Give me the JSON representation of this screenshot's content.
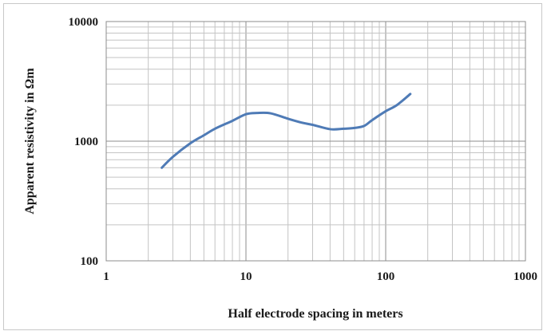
{
  "chart_data": {
    "type": "line",
    "title": "",
    "xlabel": "Half electrode spacing in meters",
    "ylabel": "Apparent resistivity in Ωm",
    "xscale": "log",
    "yscale": "log",
    "xlim": [
      1,
      1000
    ],
    "ylim": [
      100,
      10000
    ],
    "x_ticks": [
      "1",
      "10",
      "100",
      "1000"
    ],
    "y_ticks": [
      "100",
      "1000",
      "10000"
    ],
    "grid": true,
    "legend": "none",
    "series": [
      {
        "color": "#4f7bb6",
        "x": [
          2.5,
          3,
          4,
          5,
          6,
          8,
          10,
          12,
          15,
          20,
          25,
          30,
          40,
          50,
          60,
          70,
          80,
          100,
          120,
          150
        ],
        "y": [
          600,
          740,
          960,
          1120,
          1270,
          1480,
          1680,
          1720,
          1710,
          1540,
          1430,
          1370,
          1260,
          1270,
          1290,
          1340,
          1500,
          1780,
          2000,
          2480
        ]
      }
    ]
  }
}
